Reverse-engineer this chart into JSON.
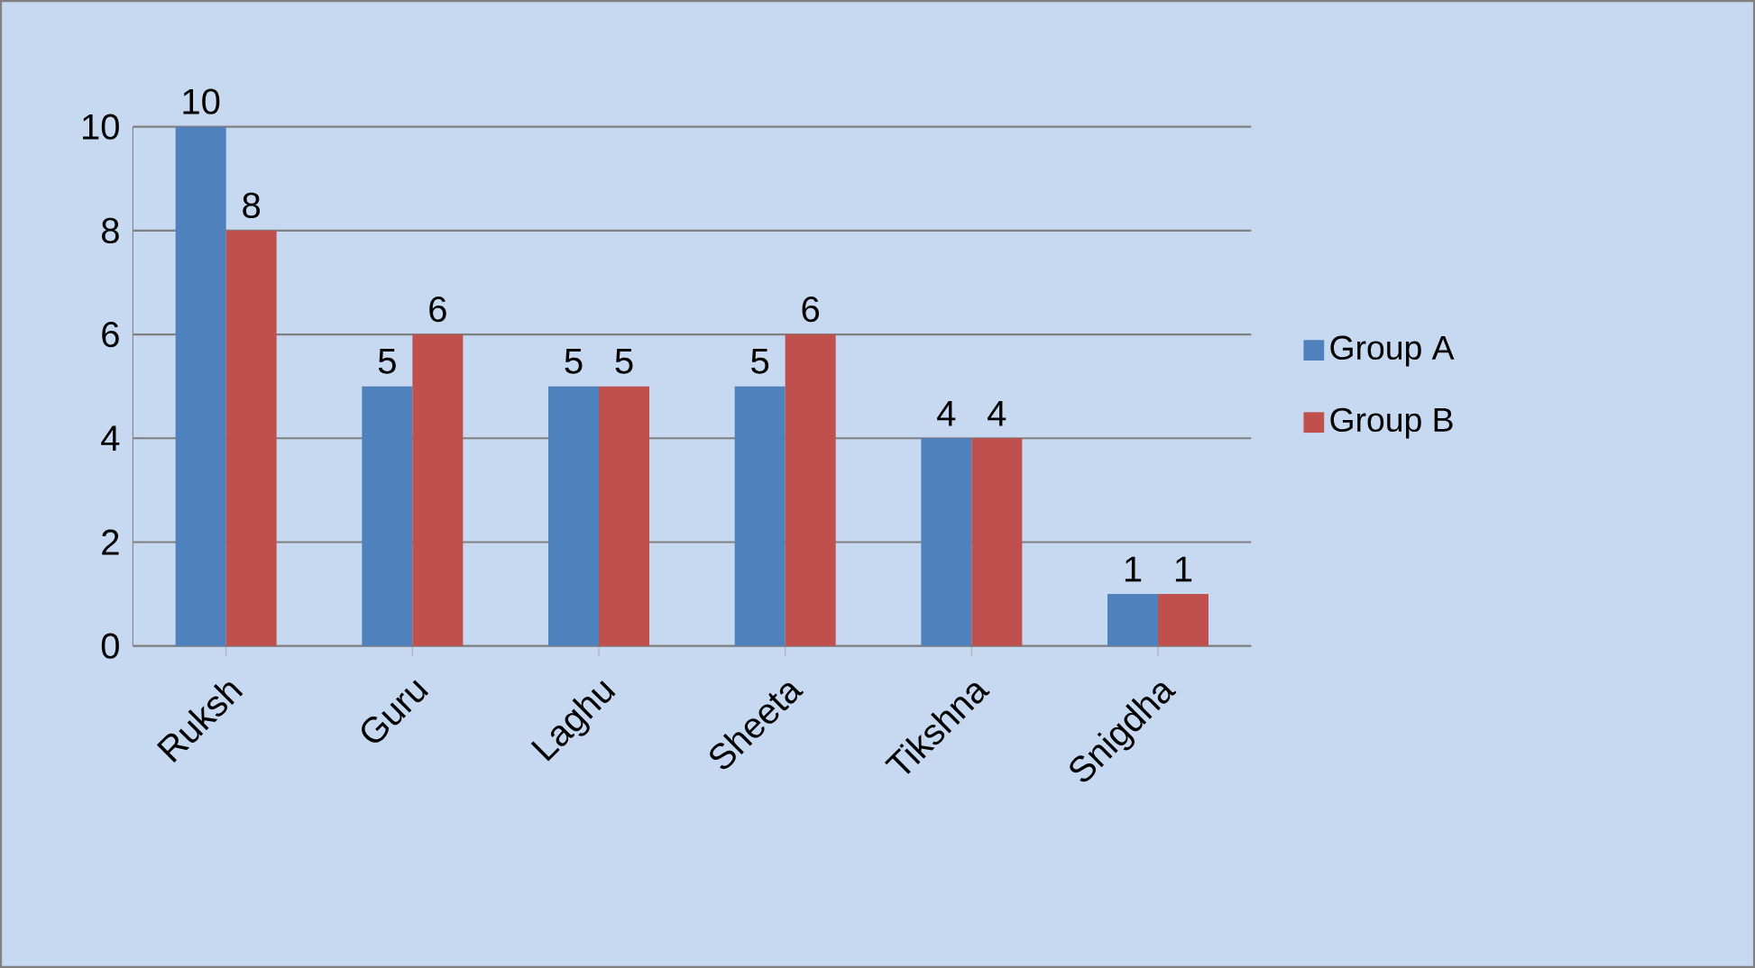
{
  "chart_data": {
    "type": "bar",
    "categories": [
      "Ruksh",
      "Guru",
      "Laghu",
      "Sheeta",
      "Tikshna",
      "Snigdha"
    ],
    "series": [
      {
        "name": "Group A",
        "color": "#4f81bd",
        "values": [
          10,
          5,
          5,
          5,
          4,
          1
        ]
      },
      {
        "name": "Group B",
        "color": "#c0504d",
        "values": [
          8,
          6,
          5,
          6,
          4,
          1
        ]
      }
    ],
    "ylim": [
      0,
      10
    ],
    "yticks": [
      0,
      2,
      4,
      6,
      8,
      10
    ],
    "grid": "y",
    "legend": "right",
    "data_labels": true
  }
}
